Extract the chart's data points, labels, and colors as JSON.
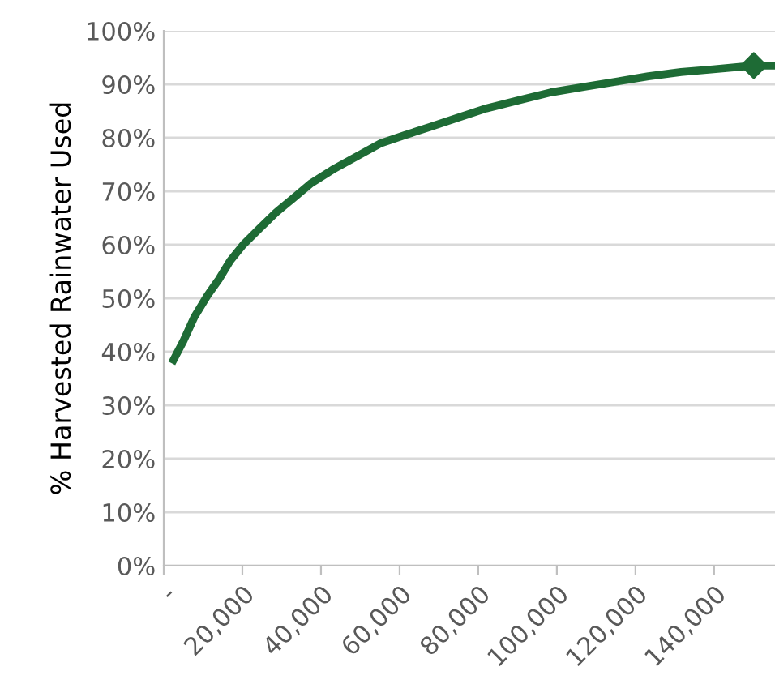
{
  "chart_data": {
    "type": "line",
    "ylabel": "% Harvested Rainwater Used",
    "grid": "y",
    "line_style": "solid",
    "marker": "none",
    "xlim": [
      0,
      155500
    ],
    "ylim": [
      0,
      100
    ],
    "xticks": [
      {
        "value": 0,
        "label": "-"
      },
      {
        "value": 20000,
        "label": "20,000"
      },
      {
        "value": 40000,
        "label": "40,000"
      },
      {
        "value": 60000,
        "label": "60,000"
      },
      {
        "value": 80000,
        "label": "80,000"
      },
      {
        "value": 100000,
        "label": "100,000"
      },
      {
        "value": 120000,
        "label": "120,000"
      },
      {
        "value": 140000,
        "label": "140,000"
      }
    ],
    "yticks": [
      {
        "value": 0,
        "label": "0%"
      },
      {
        "value": 10,
        "label": "10%"
      },
      {
        "value": 20,
        "label": "20%"
      },
      {
        "value": 30,
        "label": "30%"
      },
      {
        "value": 40,
        "label": "40%"
      },
      {
        "value": 50,
        "label": "50%"
      },
      {
        "value": 60,
        "label": "60%"
      },
      {
        "value": 70,
        "label": "70%"
      },
      {
        "value": 80,
        "label": "80%"
      },
      {
        "value": 90,
        "label": "90%"
      },
      {
        "value": 100,
        "label": "100%"
      }
    ],
    "series": [
      {
        "color": "#1e6b35",
        "x": [
          2500,
          5000,
          7800,
          11100,
          14000,
          16900,
          20200,
          24300,
          28500,
          32600,
          37500,
          42900,
          49100,
          55300,
          61400,
          67600,
          73800,
          82100,
          90300,
          98600,
          106800,
          115100,
          123300,
          131600,
          139800,
          150100,
          155500
        ],
        "values": [
          38.5,
          42,
          46.5,
          50.5,
          53.5,
          57,
          60,
          63,
          66,
          68.5,
          71.5,
          74,
          76.5,
          79,
          80.5,
          82,
          83.5,
          85.5,
          87,
          88.5,
          89.5,
          90.5,
          91.5,
          92.3,
          92.8,
          93.5,
          93.5
        ]
      },
      {
        "type": "scatter",
        "marker": "diamond",
        "color": "#1e6b35",
        "x": [
          150100
        ],
        "values": [
          93.5
        ]
      }
    ]
  }
}
